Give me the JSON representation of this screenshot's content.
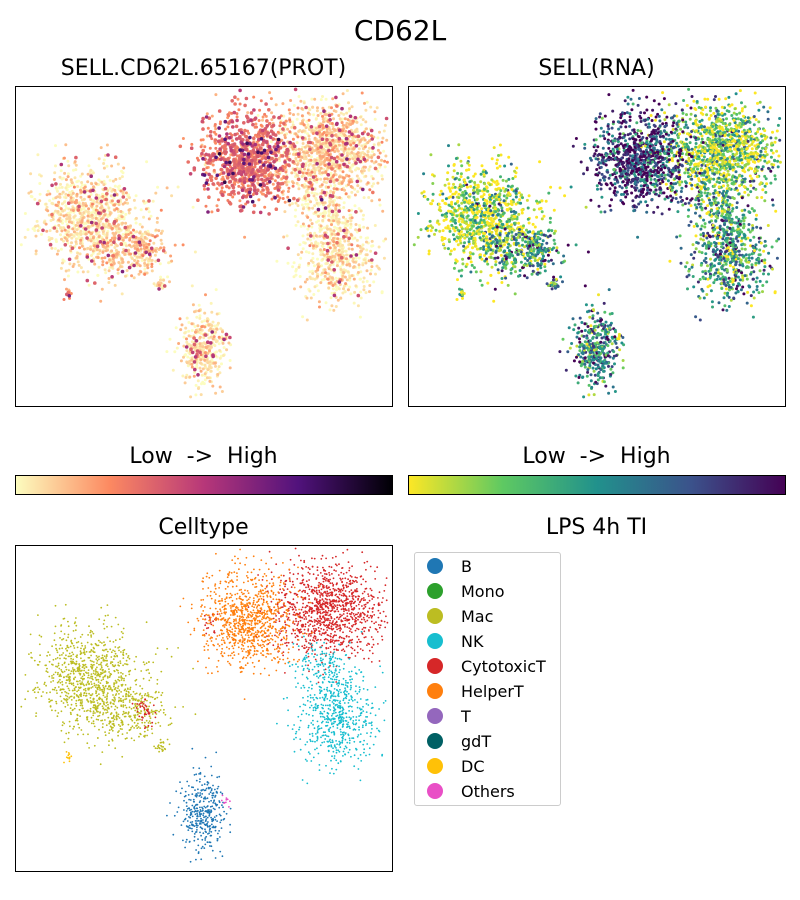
{
  "title": "CD62L",
  "chart_data": [
    {
      "type": "scatter",
      "title": "SELL.CD62L.65167(PROT)",
      "color_by": "prot",
      "colormap": "magma_r",
      "colorbar_label": "Low  ->  High"
    },
    {
      "type": "scatter",
      "title": "SELL(RNA)",
      "color_by": "rna",
      "colormap": "viridis_r",
      "colorbar_label": "Low  ->  High"
    },
    {
      "type": "scatter",
      "title": "Celltype",
      "color_by": "celltype"
    },
    {
      "type": "legend",
      "title": "LPS 4h TI"
    }
  ],
  "clusters": [
    {
      "celltype": "Mac",
      "center": [
        20,
        59
      ],
      "spread": [
        7,
        8
      ],
      "n": 900,
      "prot": 0.05,
      "rna": 0.1
    },
    {
      "celltype": "Mac",
      "center": [
        30,
        48
      ],
      "spread": [
        5,
        4
      ],
      "n": 250,
      "prot": 0.1,
      "rna": 0.45
    },
    {
      "celltype": "Mac",
      "center": [
        39,
        38
      ],
      "spread": [
        1,
        1
      ],
      "n": 25,
      "prot": 0.05,
      "rna": 0.5
    },
    {
      "celltype": "CytotoxicT",
      "center": [
        83,
        80
      ],
      "spread": [
        7,
        7
      ],
      "n": 1100,
      "prot": 0.08,
      "rna": 0.2
    },
    {
      "celltype": "CytotoxicT",
      "center": [
        34,
        49
      ],
      "spread": [
        1.5,
        2
      ],
      "n": 40,
      "prot": 0.1,
      "rna": 0.5
    },
    {
      "celltype": "CytotoxicT",
      "center": [
        52,
        76
      ],
      "spread": [
        1,
        2
      ],
      "n": 20,
      "prot": 0.2,
      "rna": 0.7
    },
    {
      "celltype": "HelperT",
      "center": [
        62,
        77
      ],
      "spread": [
        6,
        7
      ],
      "n": 900,
      "prot": 0.3,
      "rna": 0.85
    },
    {
      "celltype": "NK",
      "center": [
        85,
        48
      ],
      "spread": [
        5,
        8
      ],
      "n": 600,
      "prot": 0.04,
      "rna": 0.45
    },
    {
      "celltype": "NK",
      "center": [
        81,
        64
      ],
      "spread": [
        3,
        3
      ],
      "n": 100,
      "prot": 0.04,
      "rna": 0.4
    },
    {
      "celltype": "B",
      "center": [
        50,
        17
      ],
      "spread": [
        3,
        6
      ],
      "n": 350,
      "prot": 0.05,
      "rna": 0.55
    },
    {
      "celltype": "DC",
      "center": [
        14,
        35
      ],
      "spread": [
        0.5,
        1
      ],
      "n": 12,
      "prot": 0.2,
      "rna": 0.1
    },
    {
      "celltype": "Others",
      "center": [
        56,
        22
      ],
      "spread": [
        0.7,
        1
      ],
      "n": 10,
      "prot": 0.05,
      "rna": 0.3
    }
  ],
  "legend": [
    {
      "label": "B",
      "color": "#1f77b4"
    },
    {
      "label": "Mono",
      "color": "#2ca02c"
    },
    {
      "label": "Mac",
      "color": "#bcbd22"
    },
    {
      "label": "NK",
      "color": "#17becf"
    },
    {
      "label": "CytotoxicT",
      "color": "#d62728"
    },
    {
      "label": "HelperT",
      "color": "#ff7f0e"
    },
    {
      "label": "T",
      "color": "#9467bd"
    },
    {
      "label": "gdT",
      "color": "#006064"
    },
    {
      "label": "DC",
      "color": "#ffc107"
    },
    {
      "label": "Others",
      "color": "#e94fc6"
    }
  ]
}
